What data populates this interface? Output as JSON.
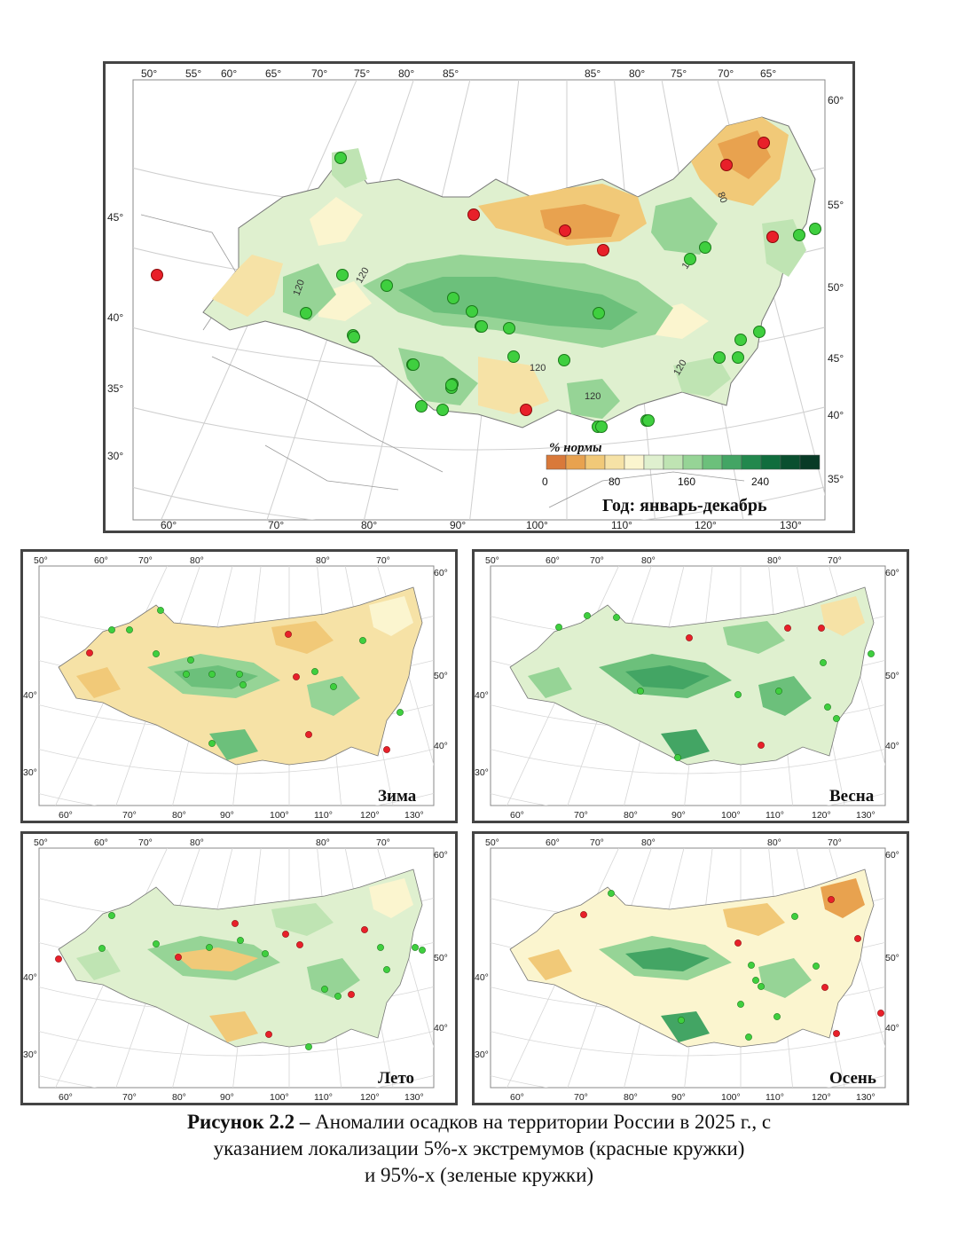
{
  "main_map": {
    "title": "Год: январь-декабрь",
    "legend_title": "% нормы",
    "legend_ticks": [
      "0",
      "80",
      "160",
      "240"
    ],
    "legend_colors": [
      "#d9793a",
      "#e8a24f",
      "#f1c978",
      "#f6e2a6",
      "#fbf5cf",
      "#dff0cf",
      "#bfe4b3",
      "#96d496",
      "#6cc07b",
      "#43a564",
      "#22884d",
      "#106d3d",
      "#0a4f2f",
      "#083a26"
    ],
    "top_labels": [
      "50°",
      "55°",
      "60°",
      "65°",
      "70°",
      "75°",
      "80°",
      "85°",
      "85°",
      "80°",
      "75°",
      "70°",
      "65°"
    ],
    "bottom_labels": [
      "60°",
      "70°",
      "80°",
      "90°",
      "100°",
      "110°",
      "120°",
      "130°"
    ],
    "left_labels": [
      "45°",
      "40°",
      "35°",
      "30°"
    ],
    "right_labels": [
      "60°",
      "55°",
      "50°",
      "45°",
      "40°",
      "35°"
    ],
    "isoline_labels": [
      "120",
      "120",
      "120",
      "120",
      "80",
      "120",
      "120"
    ],
    "red_points": 8,
    "green_points": 33
  },
  "seasons": [
    {
      "title": "Зима"
    },
    {
      "title": "Весна"
    },
    {
      "title": "Лето"
    },
    {
      "title": "Осень"
    }
  ],
  "small_labels": {
    "top": [
      "50°",
      "60°",
      "70°",
      "80°",
      "80°",
      "70°"
    ],
    "bottom": [
      "60°",
      "70°",
      "80°",
      "90°",
      "100°",
      "110°",
      "120°",
      "130°"
    ],
    "left": [
      "40°",
      "30°"
    ],
    "right": [
      "60°",
      "50°",
      "40°"
    ]
  },
  "caption": {
    "bold": "Рисунок 2.2 –",
    "line1": " Аномалии осадков на территории России в 2025 г., с",
    "line2": "указанием локализации 5%-х экстремумов (красные кружки)",
    "line3": "и 95%-х (зеленые кружки)"
  },
  "colors": {
    "extreme_low": "#e8202a",
    "extreme_high": "#3fcf3f",
    "frame": "#444444"
  }
}
